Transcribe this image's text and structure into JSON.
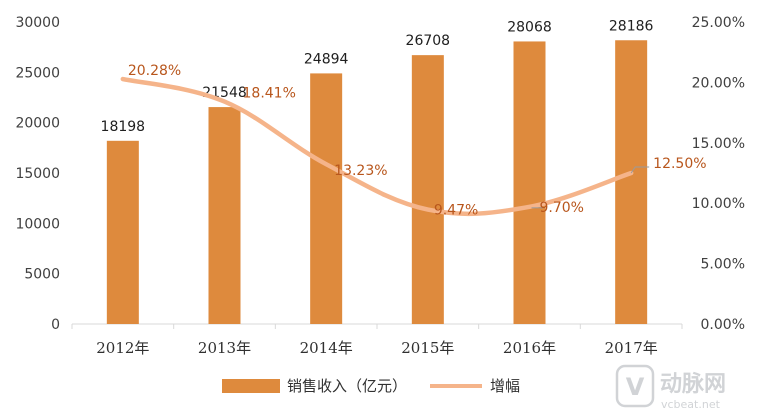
{
  "chart_data": {
    "type": "bar",
    "categories": [
      "2012年",
      "2013年",
      "2014年",
      "2015年",
      "2016年",
      "2017年"
    ],
    "series": [
      {
        "name": "销售收入（亿元）",
        "kind": "bar",
        "axis": "left",
        "values": [
          18198,
          21548,
          24894,
          26708,
          28068,
          28186
        ],
        "labels": [
          "18198",
          "21548",
          "24894",
          "26708",
          "28068",
          "28186"
        ]
      },
      {
        "name": "增幅",
        "kind": "line",
        "axis": "right",
        "values": [
          20.28,
          18.41,
          13.23,
          9.47,
          9.7,
          12.5
        ],
        "labels": [
          "20.28%",
          "18.41%",
          "13.23%",
          "9.47%",
          "9.70%",
          "12.50%"
        ]
      }
    ],
    "y_left": {
      "ylim": [
        0,
        30000
      ],
      "ticks": [
        "0",
        "5000",
        "10000",
        "15000",
        "20000",
        "25000",
        "30000"
      ]
    },
    "y_right": {
      "ylim": [
        0,
        25
      ],
      "ticks": [
        "0.00%",
        "5.00%",
        "10.00%",
        "15.00%",
        "20.00%",
        "25.00%"
      ]
    },
    "legend": {
      "placement": "bottom"
    },
    "grid": false
  },
  "colors": {
    "bar": "#de8a3d",
    "line": "#f5b48a",
    "pct_label": "#b8561c",
    "axis": "#d9d9d9"
  },
  "watermark": {
    "logo_glyph": "V",
    "brand": "动脉网",
    "site": "vcbeat.net"
  }
}
